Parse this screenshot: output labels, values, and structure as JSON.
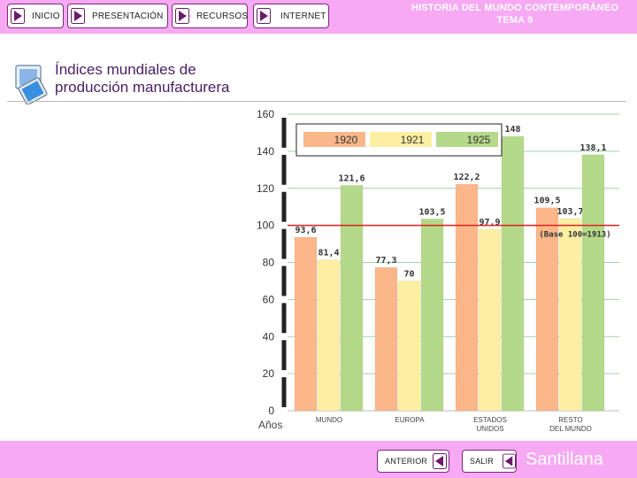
{
  "nav": {
    "inicio": "INICIO",
    "presentacion": "PRESENTACIÓN",
    "recursos": "RECURSOS",
    "internet": "INTERNET"
  },
  "header": {
    "title_line1": "HISTORIA DEL MUNDO CONTEMPORÁNEO",
    "title_line2": "TEMA 9"
  },
  "page": {
    "title_line1": "Índices mundiales de",
    "title_line2": "producción manufacturera"
  },
  "footer": {
    "anterior": "ANTERIOR",
    "salir": "SALIR",
    "brand": "Santillana"
  },
  "colors": {
    "bar_bg": "#f7a9f4",
    "series_1920": "#fbb78a",
    "series_1921": "#fcefa2",
    "series_1925": "#b5d98a",
    "base_line": "#e0201e",
    "grid": "#9fd3a8"
  },
  "chart_data": {
    "type": "bar",
    "categories": [
      "MUNDO",
      "EUROPA",
      "ESTADOS UNIDOS",
      "RESTO DEL MUNDO"
    ],
    "category_labels": [
      [
        "MUNDO"
      ],
      [
        "EUROPA"
      ],
      [
        "ESTADOS",
        "UNIDOS"
      ],
      [
        "RESTO",
        "DEL MUNDO"
      ]
    ],
    "series": [
      {
        "name": "1920",
        "values": [
          93.6,
          77.3,
          122.2,
          109.5
        ],
        "labels": [
          "93,6",
          "77,3",
          "122,2",
          "109,5"
        ]
      },
      {
        "name": "1921",
        "values": [
          81.4,
          70,
          97.9,
          103.7
        ],
        "labels": [
          "81,4",
          "70",
          "97,9",
          "103,7"
        ]
      },
      {
        "name": "1925",
        "values": [
          121.6,
          103.5,
          148,
          138.1
        ],
        "labels": [
          "121,6",
          "103,5",
          "148",
          "138,1"
        ]
      }
    ],
    "xlabel": "Años",
    "ylabel": "",
    "ylim": [
      0,
      160
    ],
    "yticks": [
      0,
      20,
      40,
      60,
      80,
      100,
      120,
      140,
      160
    ],
    "base_value": 100,
    "base_label": "(Base 100=1913)",
    "grid": true,
    "legend_position": "top-left"
  }
}
